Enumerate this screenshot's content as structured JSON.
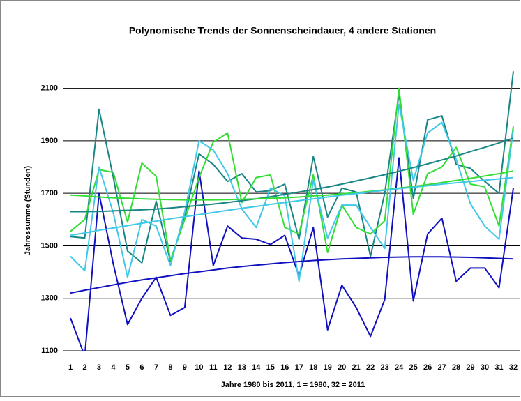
{
  "chart_data": {
    "type": "line",
    "title": "Polynomische Trends der Sonnenscheindauer, 4 andere Stationen",
    "x_label": "Jahre 1980 bis 2011, 1 = 1980, 32 = 2011",
    "y_label": "Jahressumme (Stunden)",
    "categories": [
      "1",
      "2",
      "3",
      "4",
      "5",
      "6",
      "7",
      "8",
      "9",
      "10",
      "11",
      "12",
      "13",
      "14",
      "15",
      "16",
      "17",
      "18",
      "19",
      "20",
      "21",
      "22",
      "23",
      "24",
      "25",
      "26",
      "27",
      "28",
      "29",
      "30",
      "31",
      "32"
    ],
    "ylim": [
      1100,
      2200
    ],
    "yticks": [
      1100,
      1300,
      1500,
      1700,
      1900,
      2100
    ],
    "grid": true,
    "series": [
      {
        "color": "#1010c0",
        "values": [
          1225,
          1080,
          1700,
          1430,
          1200,
          1300,
          1380,
          1235,
          1265,
          1785,
          1425,
          1575,
          1530,
          1525,
          1505,
          1540,
          1385,
          1570,
          1180,
          1350,
          1265,
          1155,
          1295,
          1835,
          1290,
          1545,
          1605,
          1365,
          1415,
          1415,
          1340,
          1720
        ]
      },
      {
        "color": "#1a8585",
        "values": [
          1535,
          1530,
          2020,
          1760,
          1480,
          1435,
          1670,
          1440,
          1610,
          1850,
          1810,
          1745,
          1775,
          1705,
          1710,
          1735,
          1525,
          1840,
          1610,
          1720,
          1705,
          1460,
          1700,
          2080,
          1680,
          1980,
          1995,
          1810,
          1795,
          1745,
          1700,
          2165
        ]
      },
      {
        "color": "#33dd33",
        "values": [
          1555,
          1600,
          1790,
          1780,
          1590,
          1815,
          1765,
          1445,
          1600,
          1760,
          1895,
          1930,
          1665,
          1760,
          1770,
          1570,
          1545,
          1770,
          1475,
          1655,
          1570,
          1545,
          1595,
          2100,
          1620,
          1775,
          1800,
          1875,
          1735,
          1725,
          1575,
          1955
        ]
      },
      {
        "color": "#40c8e8",
        "values": [
          1460,
          1405,
          1800,
          1625,
          1380,
          1600,
          1575,
          1425,
          1630,
          1900,
          1865,
          1775,
          1640,
          1570,
          1720,
          1690,
          1365,
          1750,
          1530,
          1655,
          1655,
          1570,
          1490,
          2040,
          1750,
          1930,
          1970,
          1830,
          1660,
          1575,
          1525,
          1945
        ]
      },
      {
        "color": "#1010c0",
        "values": [
          1320,
          1331,
          1341,
          1351,
          1361,
          1370,
          1378,
          1386,
          1394,
          1401,
          1408,
          1415,
          1421,
          1426,
          1431,
          1436,
          1440,
          1444,
          1447,
          1450,
          1452,
          1454,
          1456,
          1457,
          1458,
          1458,
          1458,
          1457,
          1456,
          1454,
          1452,
          1450
        ]
      },
      {
        "color": "#1a8585",
        "values": [
          1630,
          1630,
          1631,
          1633,
          1635,
          1637,
          1640,
          1644,
          1649,
          1654,
          1659,
          1665,
          1672,
          1679,
          1687,
          1696,
          1705,
          1714,
          1724,
          1735,
          1747,
          1759,
          1771,
          1784,
          1798,
          1812,
          1827,
          1842,
          1859,
          1875,
          1892,
          1910
        ]
      },
      {
        "color": "#33dd33",
        "values": [
          1693,
          1690,
          1686,
          1683,
          1681,
          1679,
          1677,
          1676,
          1675,
          1675,
          1675,
          1676,
          1677,
          1679,
          1681,
          1683,
          1686,
          1690,
          1693,
          1698,
          1702,
          1708,
          1713,
          1720,
          1726,
          1733,
          1741,
          1749,
          1757,
          1766,
          1775,
          1785
        ]
      },
      {
        "color": "#40c8e8",
        "values": [
          1540,
          1549,
          1559,
          1568,
          1577,
          1586,
          1594,
          1603,
          1611,
          1619,
          1627,
          1635,
          1643,
          1650,
          1658,
          1665,
          1672,
          1679,
          1686,
          1693,
          1699,
          1705,
          1712,
          1718,
          1723,
          1729,
          1735,
          1740,
          1745,
          1750,
          1755,
          1760
        ]
      }
    ]
  }
}
